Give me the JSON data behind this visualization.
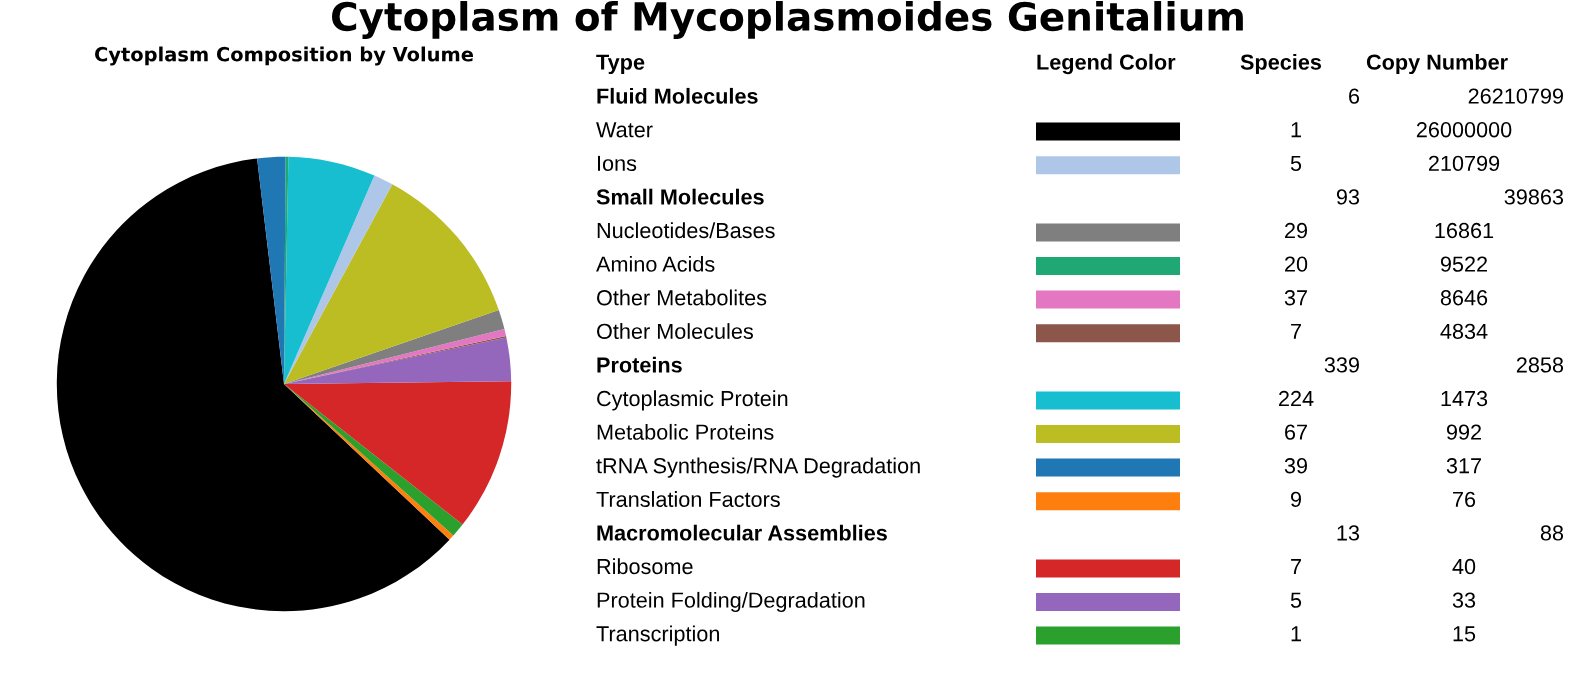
{
  "chart_data": [
    {
      "type": "pie",
      "title": "Cytoplasm of Mycoplasmoides Genitalium",
      "subtitle": "Cytoplasm Composition by Volume",
      "categories": [
        null,
        null,
        null,
        null,
        null,
        null,
        null,
        null,
        null,
        null,
        null,
        null,
        null
      ],
      "values": [
        61.1,
        0.4,
        1.0,
        10.8,
        3.1,
        0.1,
        0.5,
        1.4,
        11.8,
        1.4,
        6.2,
        0.2,
        2.0
      ],
      "colors": [
        "#000000",
        "#ff7f0e",
        "#2ca02c",
        "#d62728",
        "#9467bd",
        "#8c564b",
        "#e377c2",
        "#7f7f7f",
        "#bcbd22",
        "#aec7e8",
        "#17becf",
        "#1fa774",
        "#1f77b4"
      ]
    },
    {
      "type": "other",
      "annotations": [
        "Type",
        "Legend Color"
      ],
      "data_labels": true,
      "categories": [
        "Fluid Molecules",
        "Water",
        "Ions",
        "Small Molecules",
        "Nucleotides/Bases",
        "Amino Acids",
        "Other Metabolites",
        "Other Molecules",
        "Proteins",
        "Cytoplasmic Protein",
        "Metabolic Proteins",
        "tRNA Synthesis/RNA Degradation",
        "Translation Factors",
        "Macromolecular Assemblies",
        "Ribosome",
        "Protein Folding/Degradation",
        "Transcription"
      ],
      "colors": [
        null,
        "#000000",
        "#aec7e8",
        null,
        "#7f7f7f",
        "#1fa774",
        "#e377c2",
        "#8c564b",
        null,
        "#17becf",
        "#bcbd22",
        "#1f77b4",
        "#ff7f0e",
        null,
        "#d62728",
        "#9467bd",
        "#2ca02c"
      ],
      "series": [
        {
          "name": "Species",
          "values": [
            6,
            1,
            5,
            93,
            29,
            20,
            37,
            7,
            339,
            224,
            67,
            39,
            9,
            13,
            7,
            5,
            1
          ]
        },
        {
          "name": "Copy Number",
          "values": [
            26210799,
            26000000,
            210799,
            39863,
            16861,
            9522,
            8646,
            4834,
            2858,
            1473,
            992,
            317,
            76,
            88,
            40,
            33,
            15
          ]
        }
      ]
    }
  ]
}
